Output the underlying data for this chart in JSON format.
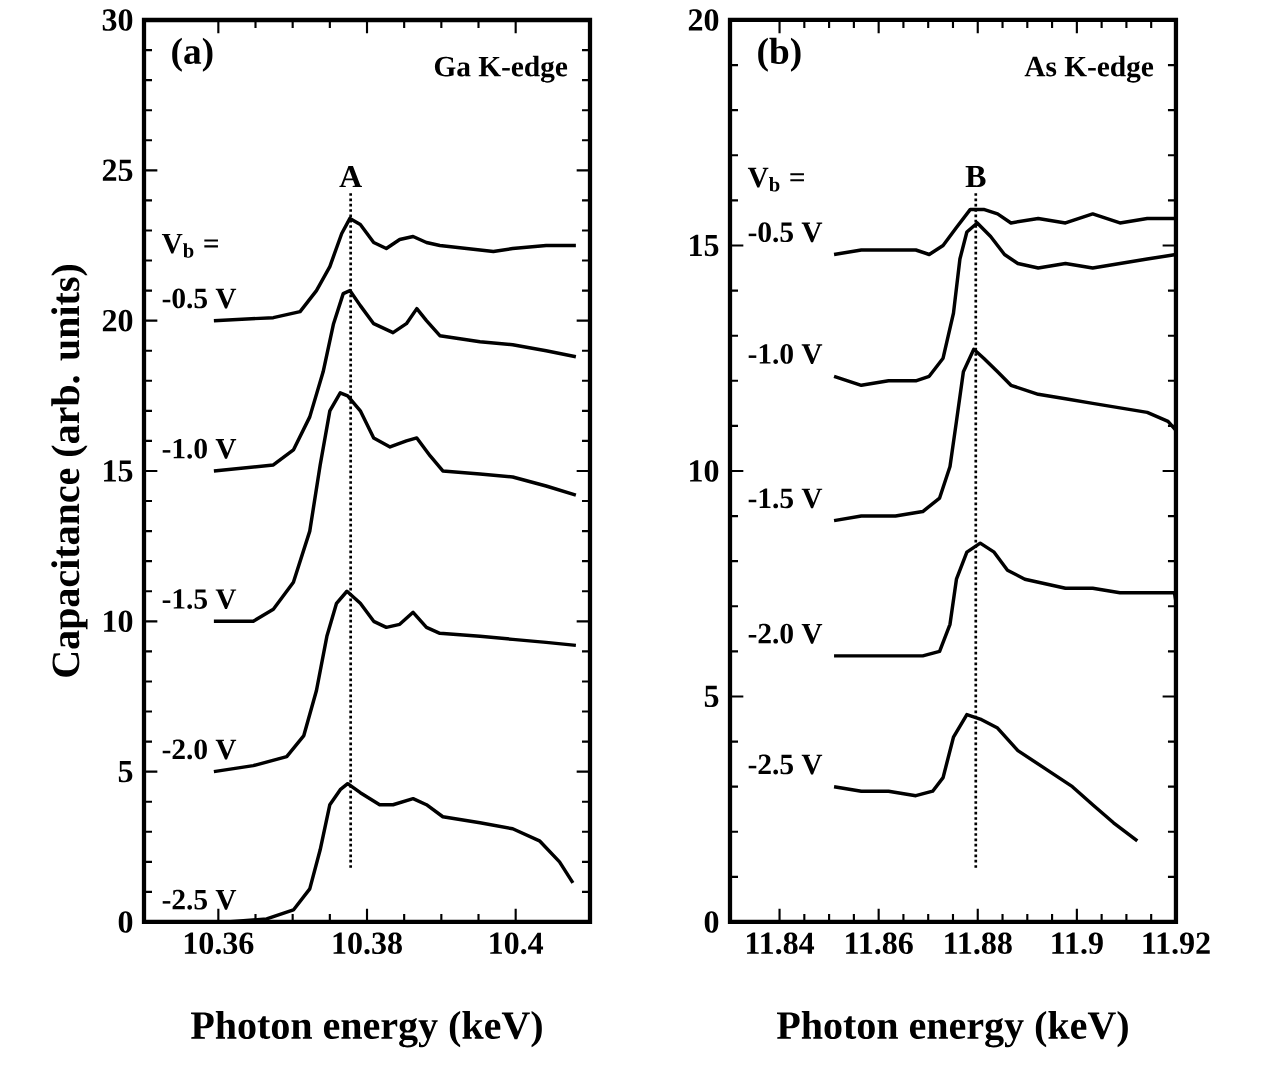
{
  "chart_data": [
    {
      "type": "line",
      "xlabel": "Photon energy (keV)",
      "ylabel": "Capacitance (arb. units)",
      "legend_title": "V$_{b}$ =",
      "annotations": [
        "(a)",
        "Ga K-edge"
      ],
      "legend": "left",
      "xlim": [
        10.35,
        10.41
      ],
      "ylim": [
        0,
        30
      ],
      "xticks": [
        10.36,
        10.38,
        10.4
      ],
      "yticks": [
        0,
        5,
        10,
        15,
        20,
        25,
        30
      ],
      "line_style": "solid",
      "ref_lines": [
        {
          "axis": "x",
          "value": 10.3778,
          "label": "A",
          "line_style": "dotted"
        }
      ],
      "series": [
        {
          "name": "-0.5 V",
          "color": "#000000",
          "x": [
            10.3594,
            10.3674,
            10.371,
            10.3732,
            10.375,
            10.3766,
            10.3777,
            10.3791,
            10.3809,
            10.3826,
            10.3844,
            10.3862,
            10.388,
            10.3898,
            10.3934,
            10.397,
            10.3996,
            10.4041,
            10.4081
          ],
          "values": [
            20.0,
            20.1,
            20.3,
            21.0,
            21.8,
            22.9,
            23.4,
            23.2,
            22.6,
            22.4,
            22.7,
            22.8,
            22.6,
            22.5,
            22.4,
            22.3,
            22.4,
            22.5,
            22.5
          ]
        },
        {
          "name": "-1.0 V",
          "color": "#000000",
          "x": [
            10.3594,
            10.3674,
            10.3701,
            10.3723,
            10.3741,
            10.3755,
            10.3768,
            10.3777,
            10.3791,
            10.3809,
            10.3835,
            10.3853,
            10.3867,
            10.388,
            10.3898,
            10.3952,
            10.3996,
            10.4041,
            10.4081
          ],
          "values": [
            15.0,
            15.2,
            15.7,
            16.8,
            18.3,
            19.9,
            20.9,
            21.0,
            20.5,
            19.9,
            19.6,
            19.9,
            20.4,
            20.0,
            19.5,
            19.3,
            19.2,
            19.0,
            18.8
          ]
        },
        {
          "name": "-1.5 V",
          "color": "#000000",
          "x": [
            10.3594,
            10.3647,
            10.3674,
            10.3701,
            10.3723,
            10.3737,
            10.375,
            10.3764,
            10.3774,
            10.3791,
            10.3809,
            10.3831,
            10.3853,
            10.3867,
            10.3885,
            10.3902,
            10.3952,
            10.3996,
            10.4041,
            10.4081
          ],
          "values": [
            10.0,
            10.0,
            10.4,
            11.3,
            13.0,
            15.2,
            17.0,
            17.6,
            17.5,
            17.0,
            16.1,
            15.8,
            16.0,
            16.1,
            15.5,
            15.0,
            14.9,
            14.8,
            14.5,
            14.2
          ]
        },
        {
          "name": "-2.0 V",
          "color": "#000000",
          "x": [
            10.3594,
            10.3647,
            10.3692,
            10.3715,
            10.3732,
            10.3746,
            10.3759,
            10.3773,
            10.3791,
            10.3809,
            10.3826,
            10.3844,
            10.3862,
            10.388,
            10.3898,
            10.3952,
            10.3996,
            10.4041,
            10.4081
          ],
          "values": [
            5.0,
            5.2,
            5.5,
            6.2,
            7.7,
            9.5,
            10.6,
            11.0,
            10.6,
            10.0,
            9.8,
            9.9,
            10.3,
            9.8,
            9.6,
            9.5,
            9.4,
            9.3,
            9.2
          ]
        },
        {
          "name": "-2.5 V",
          "color": "#000000",
          "x": [
            10.3612,
            10.3665,
            10.3701,
            10.3723,
            10.3737,
            10.375,
            10.3764,
            10.3774,
            10.3791,
            10.3817,
            10.3835,
            10.3862,
            10.388,
            10.3902,
            10.3952,
            10.3996,
            10.4032,
            10.4059,
            10.4077
          ],
          "values": [
            0.0,
            0.1,
            0.4,
            1.1,
            2.4,
            3.9,
            4.4,
            4.6,
            4.3,
            3.9,
            3.9,
            4.1,
            3.9,
            3.5,
            3.3,
            3.1,
            2.7,
            2.0,
            1.3
          ]
        }
      ]
    },
    {
      "type": "line",
      "xlabel": "Photon energy (keV)",
      "legend_title": "V$_{b}$ =",
      "annotations": [
        "(b)",
        "As K-edge"
      ],
      "legend": "left",
      "xlim": [
        11.83,
        11.92
      ],
      "ylim": [
        0,
        20
      ],
      "xticks": [
        11.84,
        11.86,
        11.88,
        11.9,
        11.92
      ],
      "yticks": [
        0,
        5,
        10,
        15,
        20
      ],
      "line_style": "solid",
      "ref_lines": [
        {
          "axis": "x",
          "value": 11.8796,
          "label": "B",
          "line_style": "dotted"
        }
      ],
      "series": [
        {
          "name": "-0.5 V",
          "color": "#000000",
          "x": [
            11.851,
            11.8565,
            11.862,
            11.8675,
            11.8702,
            11.873,
            11.8757,
            11.8785,
            11.8812,
            11.884,
            11.8867,
            11.8922,
            11.8977,
            11.9032,
            11.9087,
            11.9142,
            11.92
          ],
          "values": [
            14.8,
            14.9,
            14.9,
            14.9,
            14.8,
            15.0,
            15.4,
            15.8,
            15.8,
            15.7,
            15.5,
            15.6,
            15.5,
            15.7,
            15.5,
            15.6,
            15.6
          ]
        },
        {
          "name": "-1.0 V",
          "color": "#000000",
          "x": [
            11.851,
            11.8565,
            11.862,
            11.8675,
            11.8702,
            11.873,
            11.8751,
            11.8764,
            11.8778,
            11.8799,
            11.8826,
            11.8854,
            11.8881,
            11.8922,
            11.8977,
            11.9032,
            11.9087,
            11.9142,
            11.92
          ],
          "values": [
            12.1,
            11.9,
            12.0,
            12.0,
            12.1,
            12.5,
            13.5,
            14.7,
            15.3,
            15.5,
            15.2,
            14.8,
            14.6,
            14.5,
            14.6,
            14.5,
            14.6,
            14.7,
            14.8
          ]
        },
        {
          "name": "-1.5 V",
          "color": "#000000",
          "x": [
            11.851,
            11.8565,
            11.8634,
            11.8689,
            11.8723,
            11.8744,
            11.8757,
            11.8771,
            11.8792,
            11.8812,
            11.884,
            11.8867,
            11.8922,
            11.8977,
            11.9032,
            11.9087,
            11.9142,
            11.9184,
            11.92
          ],
          "values": [
            8.9,
            9.0,
            9.0,
            9.1,
            9.4,
            10.1,
            11.1,
            12.2,
            12.7,
            12.5,
            12.2,
            11.9,
            11.7,
            11.6,
            11.5,
            11.4,
            11.3,
            11.1,
            10.9
          ]
        },
        {
          "name": "-2.0 V",
          "color": "#000000",
          "x": [
            11.851,
            11.8565,
            11.862,
            11.8689,
            11.8723,
            11.8744,
            11.8757,
            11.8778,
            11.8805,
            11.8833,
            11.886,
            11.8895,
            11.8936,
            11.8977,
            11.9032,
            11.9087,
            11.9142,
            11.9197,
            11.92
          ],
          "values": [
            5.9,
            5.9,
            5.9,
            5.9,
            6.0,
            6.6,
            7.6,
            8.2,
            8.4,
            8.2,
            7.8,
            7.6,
            7.5,
            7.4,
            7.4,
            7.3,
            7.3,
            7.3,
            7.1
          ]
        },
        {
          "name": "-2.5 V",
          "color": "#000000",
          "x": [
            11.851,
            11.8565,
            11.862,
            11.8675,
            11.8709,
            11.873,
            11.8751,
            11.8778,
            11.8805,
            11.884,
            11.8881,
            11.8936,
            11.8991,
            11.9032,
            11.9074,
            11.9122
          ],
          "values": [
            3.0,
            2.9,
            2.9,
            2.8,
            2.9,
            3.2,
            4.1,
            4.6,
            4.5,
            4.3,
            3.8,
            3.4,
            3.0,
            2.6,
            2.2,
            1.8
          ]
        }
      ]
    }
  ]
}
